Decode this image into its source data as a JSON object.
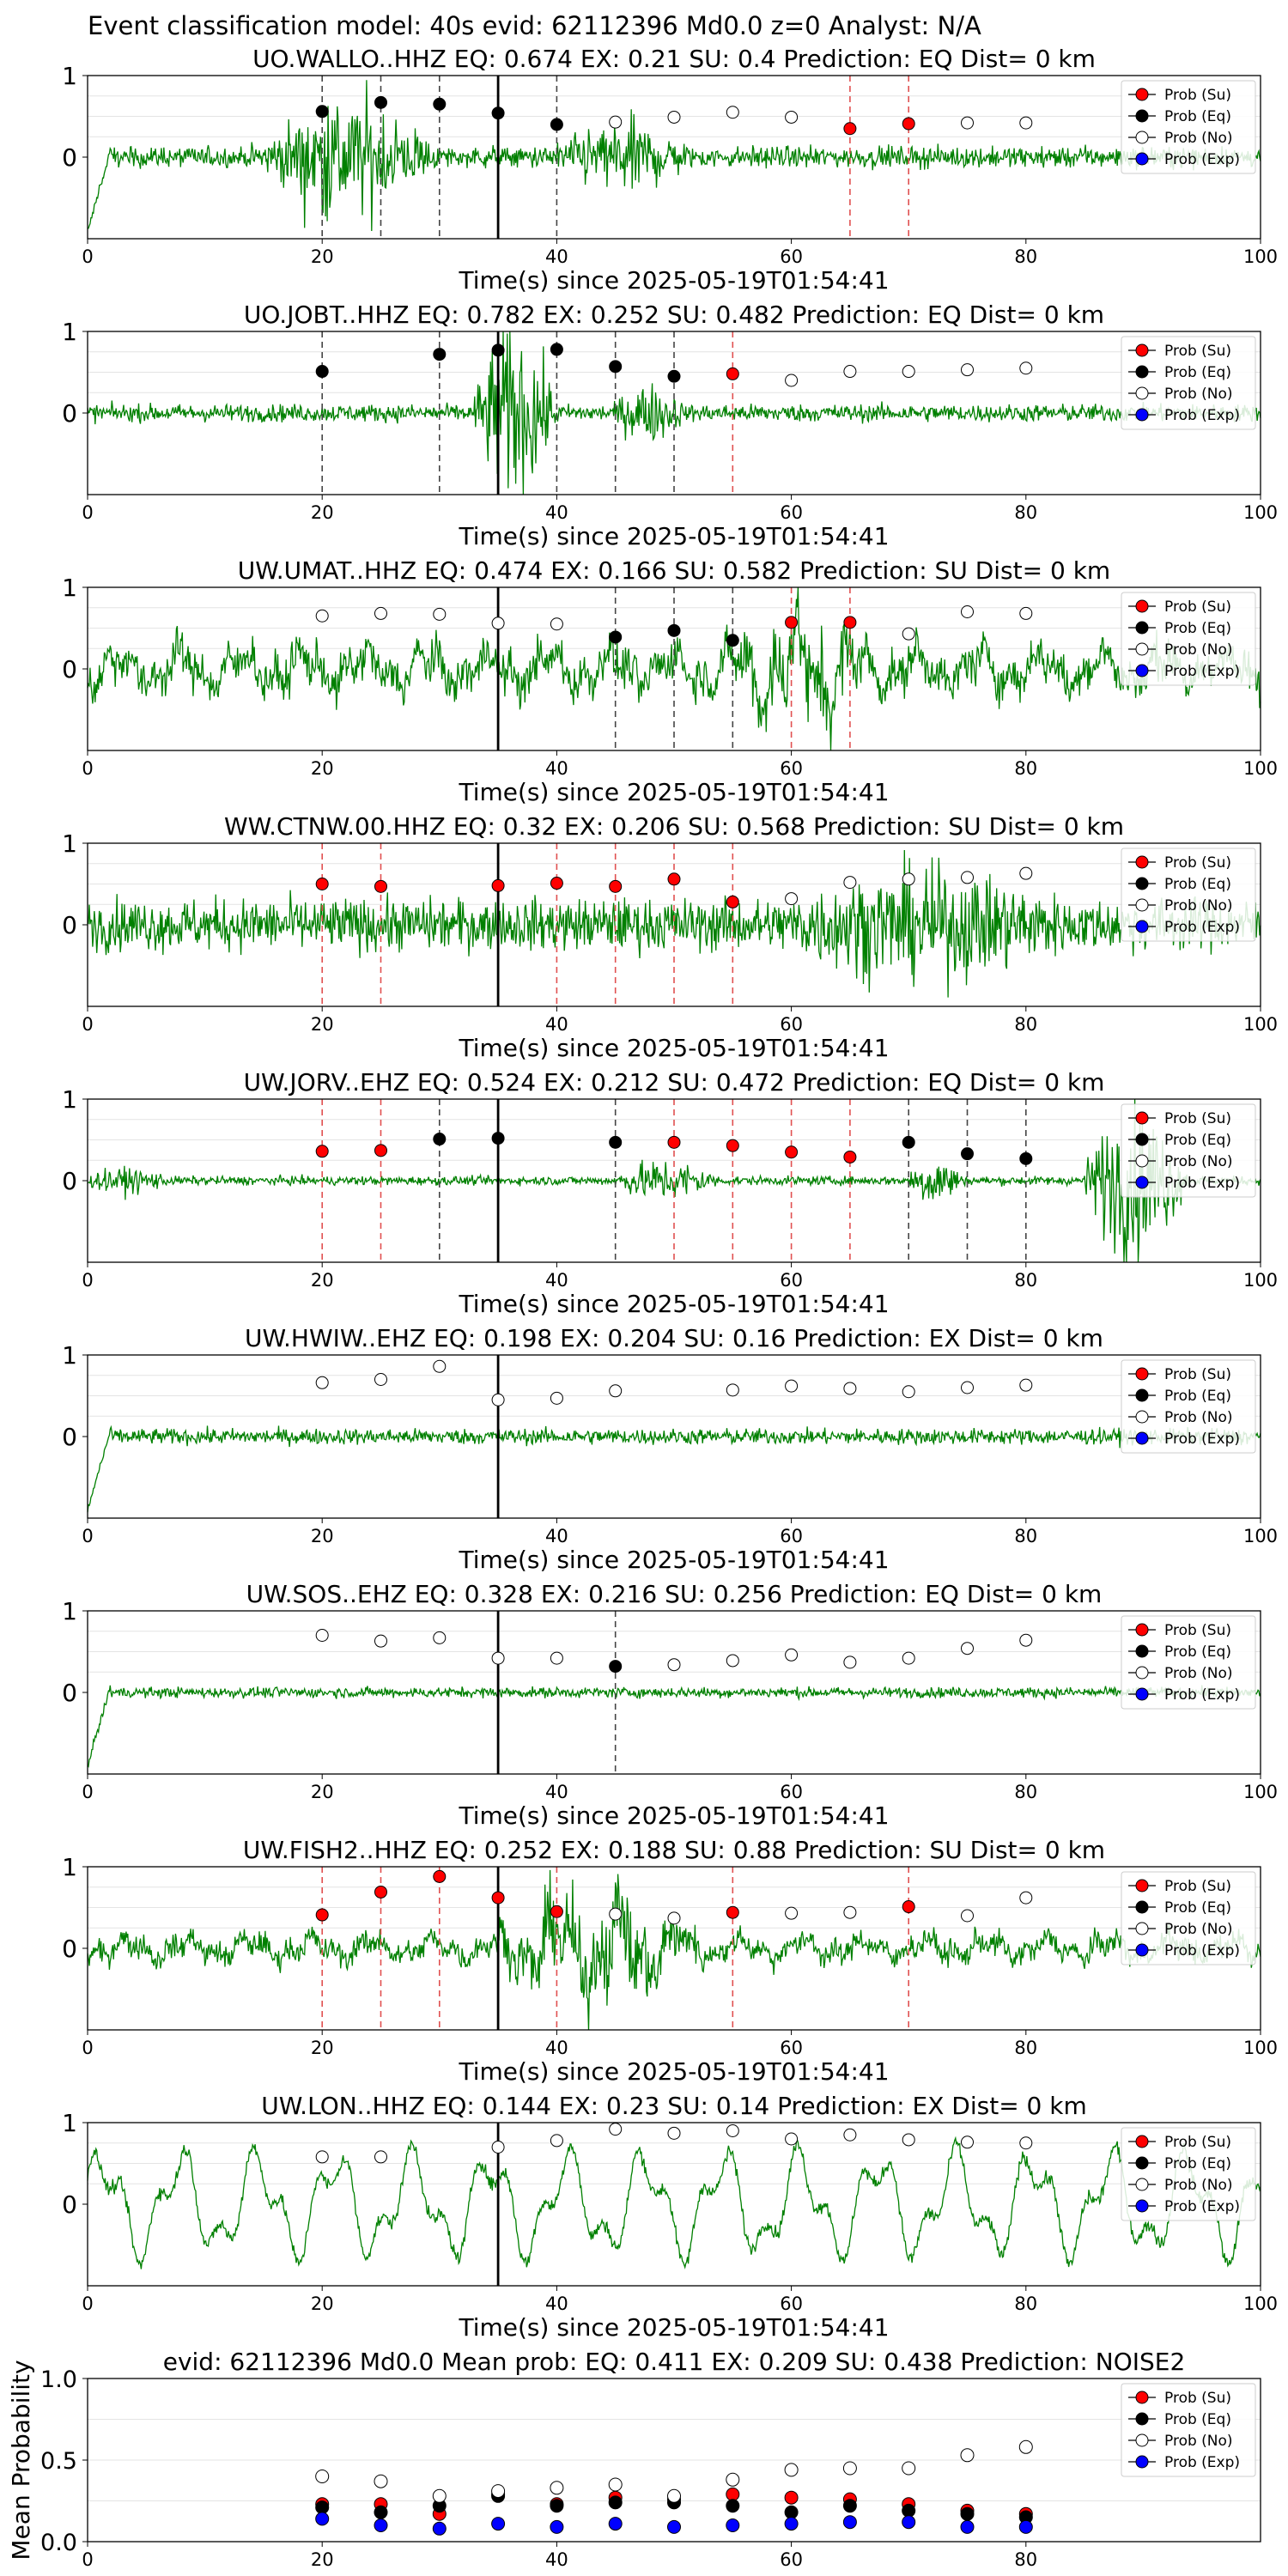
{
  "suptitle": "Event classification model: 40s evid: 62112396 Md0.0 z=0 Analyst: N/A",
  "legend_labels": [
    "Prob (Su)",
    "Prob (Eq)",
    "Prob (No)",
    "Prob (Exp)"
  ],
  "colors": {
    "waveform": "#008000",
    "su": "#ff0000",
    "eq": "#000000",
    "no": "#ffffff",
    "exp": "#0000ff",
    "su_line": "#e05050",
    "eq_line": "#444444",
    "legend_fill": "#c8e6c8"
  },
  "chart_data": [
    {
      "type": "line+scatter",
      "title": "UO.WALLO..HHZ   EQ: 0.674  EX: 0.21  SU: 0.4   Prediction: EQ    Dist= 0 km",
      "xlabel": "Time(s) since 2025-05-19T01:54:41",
      "ylabel": "",
      "xlim": [
        0,
        100
      ],
      "ylim": [
        -1,
        1
      ],
      "xticks": [
        "0",
        "20",
        "40",
        "60",
        "80",
        "100"
      ],
      "yticks": [
        "0",
        "1"
      ],
      "grid": true,
      "legend": "top-right",
      "marker_line": 35,
      "waveform": {
        "style": "burst",
        "amp": 0.12,
        "events": [
          [
            15,
            40,
            0.6
          ],
          [
            40,
            60,
            0.3
          ]
        ],
        "start_transient": true
      },
      "points": [
        {
          "x": 20,
          "y": 0.56,
          "cls": "eq"
        },
        {
          "x": 25,
          "y": 0.67,
          "cls": "eq"
        },
        {
          "x": 30,
          "y": 0.65,
          "cls": "eq"
        },
        {
          "x": 35,
          "y": 0.54,
          "cls": "eq"
        },
        {
          "x": 40,
          "y": 0.4,
          "cls": "eq"
        },
        {
          "x": 45,
          "y": 0.43,
          "cls": "no"
        },
        {
          "x": 50,
          "y": 0.49,
          "cls": "no"
        },
        {
          "x": 55,
          "y": 0.55,
          "cls": "no"
        },
        {
          "x": 60,
          "y": 0.49,
          "cls": "no"
        },
        {
          "x": 65,
          "y": 0.35,
          "cls": "su"
        },
        {
          "x": 70,
          "y": 0.41,
          "cls": "su"
        },
        {
          "x": 75,
          "y": 0.42,
          "cls": "no"
        },
        {
          "x": 80,
          "y": 0.42,
          "cls": "no"
        }
      ]
    },
    {
      "type": "line+scatter",
      "title": "UO.JOBT..HHZ   EQ: 0.782  EX: 0.252  SU: 0.482   Prediction: EQ    Dist= 0 km",
      "xlabel": "Time(s) since 2025-05-19T01:54:41",
      "ylabel": "",
      "xlim": [
        0,
        100
      ],
      "ylim": [
        -1,
        1
      ],
      "xticks": [
        "0",
        "20",
        "40",
        "60",
        "80",
        "100"
      ],
      "yticks": [
        "0",
        "1"
      ],
      "grid": true,
      "legend": "top-right",
      "marker_line": 35,
      "waveform": {
        "style": "burst",
        "amp": 0.1,
        "events": [
          [
            33,
            45,
            0.9
          ],
          [
            45,
            55,
            0.25
          ]
        ],
        "start_transient": false
      },
      "points": [
        {
          "x": 20,
          "y": 0.51,
          "cls": "eq"
        },
        {
          "x": 30,
          "y": 0.72,
          "cls": "eq"
        },
        {
          "x": 35,
          "y": 0.77,
          "cls": "eq"
        },
        {
          "x": 40,
          "y": 0.78,
          "cls": "eq"
        },
        {
          "x": 45,
          "y": 0.57,
          "cls": "eq"
        },
        {
          "x": 50,
          "y": 0.45,
          "cls": "eq"
        },
        {
          "x": 55,
          "y": 0.48,
          "cls": "su"
        },
        {
          "x": 60,
          "y": 0.4,
          "cls": "no"
        },
        {
          "x": 65,
          "y": 0.51,
          "cls": "no"
        },
        {
          "x": 70,
          "y": 0.51,
          "cls": "no"
        },
        {
          "x": 75,
          "y": 0.53,
          "cls": "no"
        },
        {
          "x": 80,
          "y": 0.55,
          "cls": "no"
        }
      ]
    },
    {
      "type": "line+scatter",
      "title": "UW.UMAT..HHZ   EQ: 0.474  EX: 0.166  SU: 0.582   Prediction: SU    Dist= 0 km",
      "xlabel": "Time(s) since 2025-05-19T01:54:41",
      "ylabel": "",
      "xlim": [
        0,
        100
      ],
      "ylim": [
        -1,
        1
      ],
      "xticks": [
        "0",
        "20",
        "40",
        "60",
        "80",
        "100"
      ],
      "yticks": [
        "0",
        "1"
      ],
      "grid": true,
      "legend": "top-right",
      "marker_line": 35,
      "waveform": {
        "style": "wave",
        "amp": 0.35,
        "events": [
          [
            55,
            75,
            0.45
          ]
        ],
        "start_transient": false
      },
      "points": [
        {
          "x": 20,
          "y": 0.65,
          "cls": "no"
        },
        {
          "x": 25,
          "y": 0.68,
          "cls": "no"
        },
        {
          "x": 30,
          "y": 0.67,
          "cls": "no"
        },
        {
          "x": 35,
          "y": 0.56,
          "cls": "no"
        },
        {
          "x": 40,
          "y": 0.55,
          "cls": "no"
        },
        {
          "x": 45,
          "y": 0.39,
          "cls": "eq"
        },
        {
          "x": 50,
          "y": 0.47,
          "cls": "eq"
        },
        {
          "x": 55,
          "y": 0.35,
          "cls": "eq"
        },
        {
          "x": 60,
          "y": 0.57,
          "cls": "su"
        },
        {
          "x": 65,
          "y": 0.57,
          "cls": "su"
        },
        {
          "x": 70,
          "y": 0.43,
          "cls": "no"
        },
        {
          "x": 75,
          "y": 0.7,
          "cls": "no"
        },
        {
          "x": 80,
          "y": 0.68,
          "cls": "no"
        }
      ]
    },
    {
      "type": "line+scatter",
      "title": "WW.CTNW.00.HHZ   EQ: 0.32  EX: 0.206  SU: 0.568   Prediction: SU    Dist= 0 km",
      "xlabel": "Time(s) since 2025-05-19T01:54:41",
      "ylabel": "",
      "xlim": [
        0,
        100
      ],
      "ylim": [
        -1,
        1
      ],
      "xticks": [
        "0",
        "20",
        "40",
        "60",
        "80",
        "100"
      ],
      "yticks": [
        "0",
        "1"
      ],
      "grid": true,
      "legend": "top-right",
      "marker_line": 35,
      "waveform": {
        "style": "noise",
        "amp": 0.3,
        "events": [
          [
            60,
            100,
            0.35
          ]
        ],
        "start_transient": false
      },
      "points": [
        {
          "x": 20,
          "y": 0.5,
          "cls": "su"
        },
        {
          "x": 25,
          "y": 0.47,
          "cls": "su"
        },
        {
          "x": 35,
          "y": 0.48,
          "cls": "su"
        },
        {
          "x": 40,
          "y": 0.51,
          "cls": "su"
        },
        {
          "x": 45,
          "y": 0.47,
          "cls": "su"
        },
        {
          "x": 50,
          "y": 0.56,
          "cls": "su"
        },
        {
          "x": 55,
          "y": 0.28,
          "cls": "su"
        },
        {
          "x": 60,
          "y": 0.32,
          "cls": "no"
        },
        {
          "x": 65,
          "y": 0.52,
          "cls": "no"
        },
        {
          "x": 70,
          "y": 0.56,
          "cls": "no"
        },
        {
          "x": 75,
          "y": 0.58,
          "cls": "no"
        },
        {
          "x": 80,
          "y": 0.63,
          "cls": "no"
        }
      ]
    },
    {
      "type": "line+scatter",
      "title": "UW.JORV..EHZ   EQ: 0.524  EX: 0.212  SU: 0.472   Prediction: EQ    Dist= 0 km",
      "xlabel": "Time(s) since 2025-05-19T01:54:41",
      "ylabel": "",
      "xlim": [
        0,
        100
      ],
      "ylim": [
        -1,
        1
      ],
      "xticks": [
        "0",
        "20",
        "40",
        "60",
        "80",
        "100"
      ],
      "yticks": [
        "0",
        "1"
      ],
      "grid": true,
      "legend": "top-right",
      "marker_line": 35,
      "waveform": {
        "style": "burst",
        "amp": 0.05,
        "events": [
          [
            0,
            12,
            0.1
          ],
          [
            45,
            60,
            0.2
          ],
          [
            70,
            78,
            0.25
          ],
          [
            85,
            100,
            0.85
          ]
        ],
        "start_transient": false
      },
      "points": [
        {
          "x": 20,
          "y": 0.36,
          "cls": "su"
        },
        {
          "x": 25,
          "y": 0.37,
          "cls": "su"
        },
        {
          "x": 30,
          "y": 0.51,
          "cls": "eq"
        },
        {
          "x": 35,
          "y": 0.52,
          "cls": "eq"
        },
        {
          "x": 45,
          "y": 0.47,
          "cls": "eq"
        },
        {
          "x": 50,
          "y": 0.47,
          "cls": "su"
        },
        {
          "x": 55,
          "y": 0.43,
          "cls": "su"
        },
        {
          "x": 60,
          "y": 0.35,
          "cls": "su"
        },
        {
          "x": 65,
          "y": 0.29,
          "cls": "su"
        },
        {
          "x": 70,
          "y": 0.47,
          "cls": "eq"
        },
        {
          "x": 75,
          "y": 0.33,
          "cls": "eq"
        },
        {
          "x": 80,
          "y": 0.27,
          "cls": "eq"
        }
      ]
    },
    {
      "type": "line+scatter",
      "title": "UW.HWIW..EHZ   EQ: 0.198  EX: 0.204  SU: 0.16   Prediction: EX    Dist= 0 km",
      "xlabel": "Time(s) since 2025-05-19T01:54:41",
      "ylabel": "",
      "xlim": [
        0,
        100
      ],
      "ylim": [
        -1,
        1
      ],
      "xticks": [
        "0",
        "20",
        "40",
        "60",
        "80",
        "100"
      ],
      "yticks": [
        "0",
        "1"
      ],
      "grid": true,
      "legend": "top-right",
      "marker_line": 35,
      "waveform": {
        "style": "noise",
        "amp": 0.09,
        "events": [],
        "start_transient": true
      },
      "points": [
        {
          "x": 20,
          "y": 0.66,
          "cls": "no"
        },
        {
          "x": 25,
          "y": 0.7,
          "cls": "no"
        },
        {
          "x": 30,
          "y": 0.86,
          "cls": "no"
        },
        {
          "x": 35,
          "y": 0.45,
          "cls": "no"
        },
        {
          "x": 40,
          "y": 0.47,
          "cls": "no"
        },
        {
          "x": 45,
          "y": 0.56,
          "cls": "no"
        },
        {
          "x": 55,
          "y": 0.57,
          "cls": "no"
        },
        {
          "x": 60,
          "y": 0.62,
          "cls": "no"
        },
        {
          "x": 65,
          "y": 0.59,
          "cls": "no"
        },
        {
          "x": 70,
          "y": 0.55,
          "cls": "no"
        },
        {
          "x": 75,
          "y": 0.6,
          "cls": "no"
        },
        {
          "x": 80,
          "y": 0.63,
          "cls": "no"
        }
      ]
    },
    {
      "type": "line+scatter",
      "title": "UW.SOS..EHZ   EQ: 0.328  EX: 0.216  SU: 0.256   Prediction: EQ    Dist= 0 km",
      "xlabel": "Time(s) since 2025-05-19T01:54:41",
      "ylabel": "",
      "xlim": [
        0,
        100
      ],
      "ylim": [
        -1,
        1
      ],
      "xticks": [
        "0",
        "20",
        "40",
        "60",
        "80",
        "100"
      ],
      "yticks": [
        "0",
        "1"
      ],
      "grid": true,
      "legend": "top-right",
      "marker_line": 35,
      "waveform": {
        "style": "noise",
        "amp": 0.06,
        "events": [],
        "start_transient": true
      },
      "points": [
        {
          "x": 20,
          "y": 0.7,
          "cls": "no"
        },
        {
          "x": 25,
          "y": 0.63,
          "cls": "no"
        },
        {
          "x": 30,
          "y": 0.67,
          "cls": "no"
        },
        {
          "x": 35,
          "y": 0.42,
          "cls": "no"
        },
        {
          "x": 40,
          "y": 0.42,
          "cls": "no"
        },
        {
          "x": 45,
          "y": 0.32,
          "cls": "eq"
        },
        {
          "x": 50,
          "y": 0.34,
          "cls": "no"
        },
        {
          "x": 55,
          "y": 0.39,
          "cls": "no"
        },
        {
          "x": 60,
          "y": 0.46,
          "cls": "no"
        },
        {
          "x": 65,
          "y": 0.37,
          "cls": "no"
        },
        {
          "x": 70,
          "y": 0.42,
          "cls": "no"
        },
        {
          "x": 75,
          "y": 0.54,
          "cls": "no"
        },
        {
          "x": 80,
          "y": 0.64,
          "cls": "no"
        }
      ]
    },
    {
      "type": "line+scatter",
      "title": "UW.FISH2..HHZ   EQ: 0.252  EX: 0.188  SU: 0.88   Prediction: SU    Dist= 0 km",
      "xlabel": "Time(s) since 2025-05-19T01:54:41",
      "ylabel": "",
      "xlim": [
        0,
        100
      ],
      "ylim": [
        -1,
        1
      ],
      "xticks": [
        "0",
        "20",
        "40",
        "60",
        "80",
        "100"
      ],
      "yticks": [
        "0",
        "1"
      ],
      "grid": true,
      "legend": "top-right",
      "marker_line": 35,
      "waveform": {
        "style": "wave",
        "amp": 0.2,
        "events": [
          [
            35,
            65,
            0.55
          ]
        ],
        "start_transient": false
      },
      "points": [
        {
          "x": 20,
          "y": 0.41,
          "cls": "su"
        },
        {
          "x": 25,
          "y": 0.69,
          "cls": "su"
        },
        {
          "x": 30,
          "y": 0.88,
          "cls": "su"
        },
        {
          "x": 35,
          "y": 0.62,
          "cls": "su"
        },
        {
          "x": 40,
          "y": 0.45,
          "cls": "su"
        },
        {
          "x": 45,
          "y": 0.42,
          "cls": "no"
        },
        {
          "x": 50,
          "y": 0.37,
          "cls": "no"
        },
        {
          "x": 55,
          "y": 0.44,
          "cls": "su"
        },
        {
          "x": 60,
          "y": 0.43,
          "cls": "no"
        },
        {
          "x": 65,
          "y": 0.44,
          "cls": "no"
        },
        {
          "x": 70,
          "y": 0.51,
          "cls": "su"
        },
        {
          "x": 75,
          "y": 0.4,
          "cls": "no"
        },
        {
          "x": 80,
          "y": 0.62,
          "cls": "no"
        }
      ]
    },
    {
      "type": "line+scatter",
      "title": "UW.LON..HHZ   EQ: 0.144  EX: 0.23  SU: 0.14   Prediction: EX    Dist= 0 km",
      "xlabel": "Time(s) since 2025-05-19T01:54:41",
      "ylabel": "",
      "xlim": [
        0,
        100
      ],
      "ylim": [
        -1,
        1
      ],
      "xticks": [
        "0",
        "20",
        "40",
        "60",
        "80",
        "100"
      ],
      "yticks": [
        "0",
        "1"
      ],
      "grid": true,
      "legend": "top-right",
      "marker_line": 35,
      "waveform": {
        "style": "slow",
        "amp": 0.55,
        "events": [],
        "start_transient": false
      },
      "points": [
        {
          "x": 20,
          "y": 0.58,
          "cls": "no"
        },
        {
          "x": 25,
          "y": 0.58,
          "cls": "no"
        },
        {
          "x": 35,
          "y": 0.7,
          "cls": "no"
        },
        {
          "x": 40,
          "y": 0.78,
          "cls": "no"
        },
        {
          "x": 45,
          "y": 0.92,
          "cls": "no"
        },
        {
          "x": 50,
          "y": 0.87,
          "cls": "no"
        },
        {
          "x": 55,
          "y": 0.9,
          "cls": "no"
        },
        {
          "x": 60,
          "y": 0.8,
          "cls": "no"
        },
        {
          "x": 65,
          "y": 0.85,
          "cls": "no"
        },
        {
          "x": 70,
          "y": 0.79,
          "cls": "no"
        },
        {
          "x": 75,
          "y": 0.76,
          "cls": "no"
        },
        {
          "x": 80,
          "y": 0.75,
          "cls": "no"
        }
      ]
    },
    {
      "type": "scatter",
      "title": "evid: 62112396  Md0.0   Mean prob:    EQ: 0.411  EX: 0.209  SU: 0.438   Prediction: NOISE2",
      "xlabel": "",
      "ylabel": "Mean Probability",
      "xlim": [
        0,
        100
      ],
      "ylim": [
        0,
        1
      ],
      "xticks": [
        "0",
        "20",
        "40",
        "60",
        "80"
      ],
      "yticks": [
        "0.0",
        "0.5",
        "1.0"
      ],
      "grid": true,
      "legend": "top-right",
      "x": [
        20,
        25,
        30,
        35,
        40,
        45,
        50,
        55,
        60,
        65,
        70,
        75,
        80
      ],
      "series": [
        {
          "name": "Prob (Su)",
          "cls": "su",
          "values": [
            0.23,
            0.23,
            0.17,
            0.29,
            0.23,
            0.27,
            0.26,
            0.29,
            0.27,
            0.26,
            0.23,
            0.19,
            0.17
          ]
        },
        {
          "name": "Prob (Eq)",
          "cls": "eq",
          "values": [
            0.21,
            0.18,
            0.22,
            0.28,
            0.22,
            0.24,
            0.24,
            0.22,
            0.18,
            0.22,
            0.19,
            0.17,
            0.15
          ]
        },
        {
          "name": "Prob (No)",
          "cls": "no",
          "values": [
            0.4,
            0.37,
            0.28,
            0.31,
            0.33,
            0.35,
            0.28,
            0.38,
            0.44,
            0.45,
            0.45,
            0.53,
            0.58
          ]
        },
        {
          "name": "Prob (Exp)",
          "cls": "exp",
          "values": [
            0.14,
            0.1,
            0.08,
            0.11,
            0.09,
            0.11,
            0.09,
            0.1,
            0.11,
            0.12,
            0.12,
            0.09,
            0.09
          ]
        }
      ]
    }
  ]
}
